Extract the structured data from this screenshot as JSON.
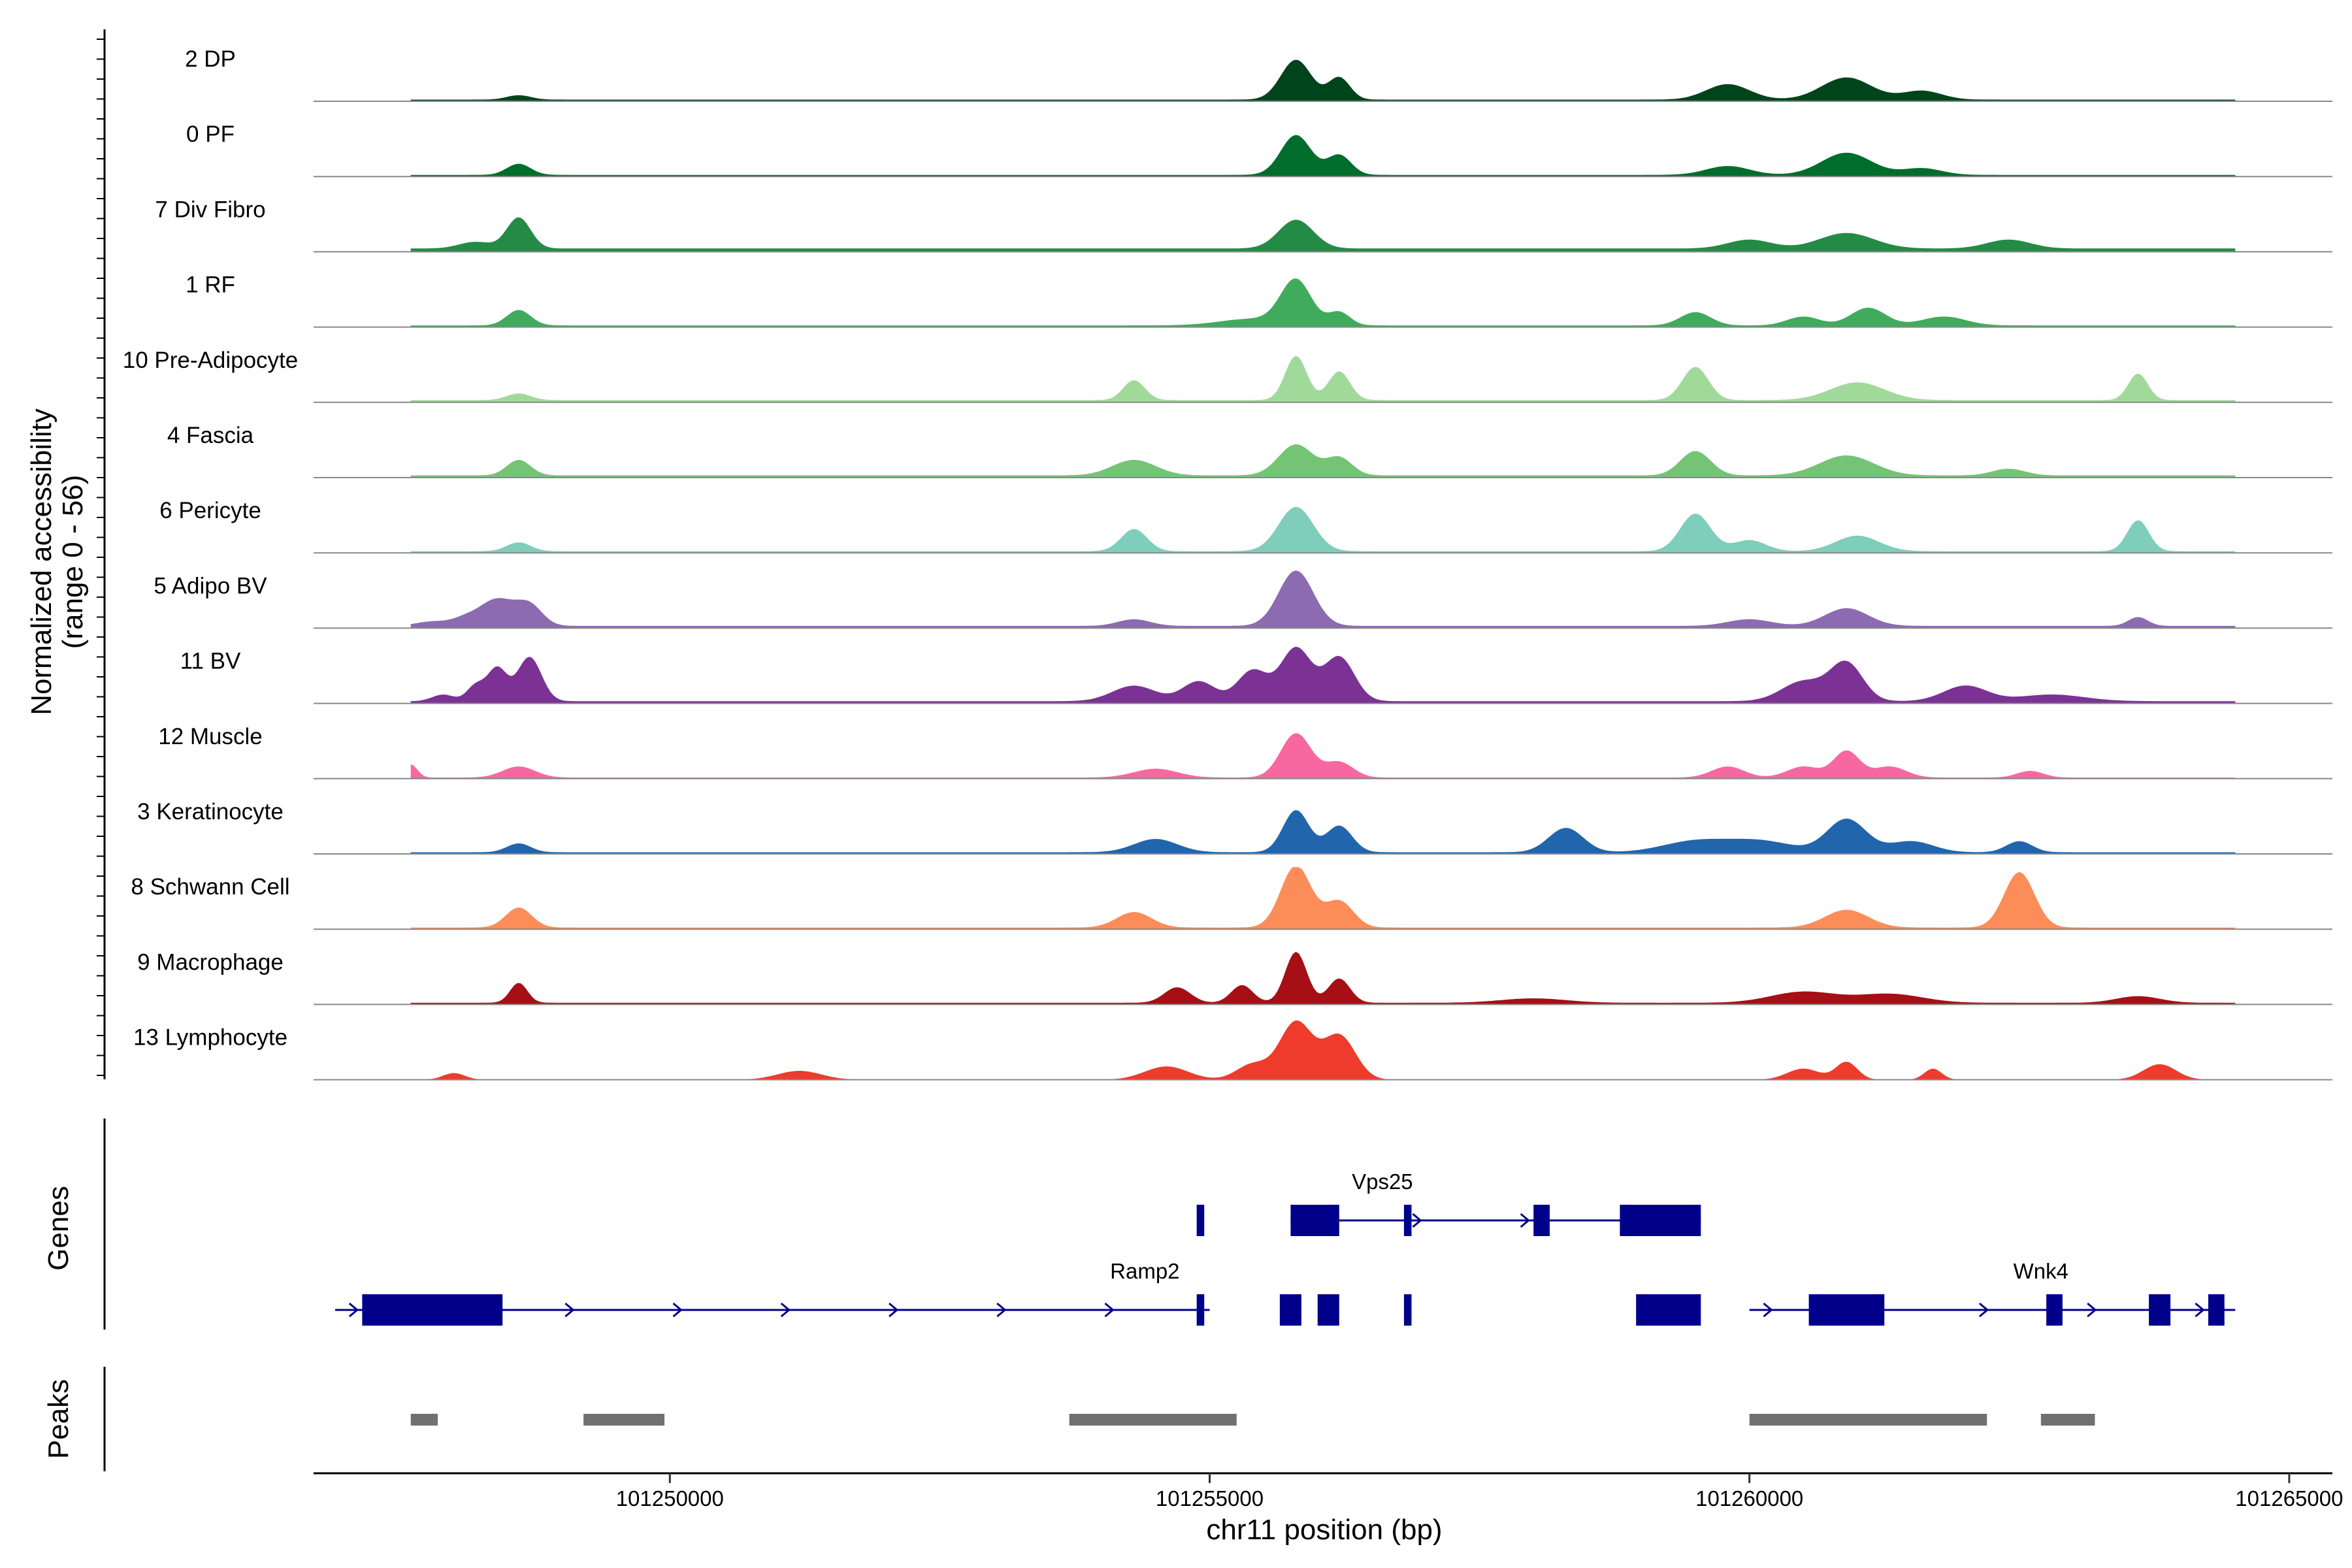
{
  "chart_data": {
    "type": "area",
    "title": "",
    "ylabel": "Normalized accessibility (range 0 - 56)",
    "ylabel_lines": [
      "Normalized accessibility",
      "(range 0 - 56)"
    ],
    "ylim": [
      0,
      56
    ],
    "xlabel": "chr11 position (bp)",
    "xlim": [
      101246700,
      101265400
    ],
    "xticks": [
      101250000,
      101255000,
      101260000,
      101265000
    ],
    "xtick_labels": [
      "101250000",
      "101255000",
      "101260000",
      "101265000"
    ],
    "panel_labels": {
      "genes": "Genes",
      "peaks": "Peaks"
    },
    "region": {
      "start": 101247600,
      "end": 101264500
    },
    "tracks": [
      {
        "name": "2 DP",
        "color": "#00441b",
        "baseline": 1.5,
        "peaks": [
          [
            101248600,
            4,
            110
          ],
          [
            101255800,
            36,
            140
          ],
          [
            101256200,
            20,
            100
          ],
          [
            101259800,
            14,
            200
          ],
          [
            101260900,
            20,
            230
          ],
          [
            101261600,
            8,
            180
          ]
        ]
      },
      {
        "name": "0 PF",
        "color": "#006d2c",
        "baseline": 1.5,
        "peaks": [
          [
            101248600,
            10,
            110
          ],
          [
            101255800,
            36,
            140
          ],
          [
            101256200,
            18,
            110
          ],
          [
            101259800,
            8,
            200
          ],
          [
            101260900,
            20,
            230
          ],
          [
            101261600,
            6,
            180
          ]
        ]
      },
      {
        "name": "7 Div Fibro",
        "color": "#238b45",
        "baseline": 3,
        "peaks": [
          [
            101248200,
            6,
            150
          ],
          [
            101248600,
            28,
            110
          ],
          [
            101255800,
            26,
            160
          ],
          [
            101260000,
            8,
            200
          ],
          [
            101260900,
            14,
            250
          ],
          [
            101262400,
            8,
            200
          ]
        ]
      },
      {
        "name": "1 RF",
        "color": "#41ab5d",
        "baseline": 1.5,
        "peaks": [
          [
            101248600,
            14,
            110
          ],
          [
            101255400,
            6,
            300
          ],
          [
            101255800,
            40,
            140
          ],
          [
            101256200,
            12,
            100
          ],
          [
            101259500,
            12,
            140
          ],
          [
            101260500,
            8,
            150
          ],
          [
            101261100,
            16,
            160
          ],
          [
            101261800,
            8,
            200
          ]
        ]
      },
      {
        "name": "10 Pre-Adipocyte",
        "color": "#a1d99b",
        "baseline": 2,
        "peaks": [
          [
            101248600,
            6,
            110
          ],
          [
            101254300,
            18,
            100
          ],
          [
            101255800,
            40,
            100
          ],
          [
            101256200,
            26,
            100
          ],
          [
            101259500,
            30,
            120
          ],
          [
            101261000,
            16,
            250
          ],
          [
            101263600,
            24,
            90
          ]
        ]
      },
      {
        "name": "4 Fascia",
        "color": "#74c476",
        "baseline": 2,
        "peaks": [
          [
            101248600,
            14,
            110
          ],
          [
            101254300,
            14,
            200
          ],
          [
            101255800,
            28,
            160
          ],
          [
            101256200,
            16,
            120
          ],
          [
            101259500,
            22,
            140
          ],
          [
            101260900,
            18,
            250
          ],
          [
            101262400,
            6,
            150
          ]
        ]
      },
      {
        "name": "6 Pericyte",
        "color": "#7fcdbb",
        "baseline": 1.5,
        "peaks": [
          [
            101248600,
            8,
            110
          ],
          [
            101254300,
            20,
            120
          ],
          [
            101255800,
            40,
            160
          ],
          [
            101259500,
            34,
            140
          ],
          [
            101260000,
            10,
            150
          ],
          [
            101261000,
            14,
            200
          ],
          [
            101263600,
            28,
            100
          ]
        ]
      },
      {
        "name": "5 Adipo BV",
        "color": "#8c6bb1",
        "baseline": 2,
        "peaks": [
          [
            101247800,
            4,
            150
          ],
          [
            101248100,
            6,
            120
          ],
          [
            101248400,
            24,
            160
          ],
          [
            101248700,
            18,
            120
          ],
          [
            101254300,
            6,
            150
          ],
          [
            101255800,
            50,
            160
          ],
          [
            101260000,
            6,
            200
          ],
          [
            101260900,
            16,
            200
          ],
          [
            101263600,
            8,
            90
          ]
        ]
      },
      {
        "name": "11 BV",
        "color": "#7b3294",
        "baseline": 2,
        "peaks": [
          [
            101247900,
            6,
            100
          ],
          [
            101248200,
            14,
            80
          ],
          [
            101248400,
            30,
            90
          ],
          [
            101248700,
            40,
            110
          ],
          [
            101254300,
            14,
            200
          ],
          [
            101254900,
            18,
            150
          ],
          [
            101255400,
            28,
            140
          ],
          [
            101255800,
            48,
            140
          ],
          [
            101256200,
            40,
            140
          ],
          [
            101260500,
            18,
            200
          ],
          [
            101260900,
            34,
            150
          ],
          [
            101262000,
            14,
            200
          ],
          [
            101262800,
            6,
            300
          ]
        ]
      },
      {
        "name": "12 Muscle",
        "color": "#f768a1",
        "baseline": 1,
        "peaks": [
          [
            101247600,
            12,
            60
          ],
          [
            101248600,
            10,
            150
          ],
          [
            101254500,
            8,
            200
          ],
          [
            101255800,
            40,
            140
          ],
          [
            101256200,
            14,
            130
          ],
          [
            101259800,
            10,
            150
          ],
          [
            101260500,
            10,
            150
          ],
          [
            101260900,
            24,
            120
          ],
          [
            101261300,
            10,
            150
          ],
          [
            101262600,
            6,
            120
          ]
        ]
      },
      {
        "name": "3 Keratinocyte",
        "color": "#2166ac",
        "baseline": 1.5,
        "peaks": [
          [
            101248600,
            8,
            110
          ],
          [
            101254500,
            12,
            200
          ],
          [
            101255800,
            38,
            120
          ],
          [
            101256200,
            24,
            120
          ],
          [
            101258300,
            22,
            160
          ],
          [
            101259500,
            10,
            300
          ],
          [
            101260100,
            10,
            300
          ],
          [
            101260900,
            30,
            180
          ],
          [
            101261500,
            10,
            200
          ],
          [
            101262500,
            10,
            120
          ]
        ]
      },
      {
        "name": "8 Schwann Cell",
        "color": "#fc8d59",
        "baseline": 1.5,
        "peaks": [
          [
            101248600,
            18,
            120
          ],
          [
            101254300,
            14,
            160
          ],
          [
            101255800,
            56,
            140
          ],
          [
            101256200,
            24,
            130
          ],
          [
            101260900,
            16,
            200
          ],
          [
            101262500,
            50,
            140
          ]
        ]
      },
      {
        "name": "9 Macrophage",
        "color": "#a50f15",
        "baseline": 1.5,
        "peaks": [
          [
            101248600,
            18,
            80
          ],
          [
            101254700,
            14,
            120
          ],
          [
            101255300,
            16,
            100
          ],
          [
            101255800,
            46,
            100
          ],
          [
            101256200,
            22,
            100
          ],
          [
            101258000,
            4,
            300
          ],
          [
            101260500,
            10,
            300
          ],
          [
            101261300,
            8,
            300
          ],
          [
            101263600,
            6,
            200
          ]
        ]
      },
      {
        "name": "13 Lymphocyte",
        "color": "#ef3b2c",
        "baseline": 0,
        "peaks": [
          [
            101248000,
            6,
            100
          ],
          [
            101251200,
            8,
            200
          ],
          [
            101254600,
            12,
            200
          ],
          [
            101255400,
            14,
            150
          ],
          [
            101255800,
            52,
            150
          ],
          [
            101256200,
            40,
            150
          ],
          [
            101260500,
            10,
            150
          ],
          [
            101260900,
            16,
            100
          ],
          [
            101261700,
            10,
            80
          ],
          [
            101263800,
            14,
            150
          ]
        ]
      }
    ],
    "genes": [
      {
        "name": "Vps25",
        "strand": "+",
        "row": 1,
        "start": 101255750,
        "end": 101259550,
        "exons": [
          [
            101255750,
            101256200
          ],
          [
            101254880,
            101254950
          ],
          [
            101256000,
            101256080
          ],
          [
            101256800,
            101256870
          ],
          [
            101258000,
            101258150
          ],
          [
            101258800,
            101259550
          ]
        ],
        "label_position": 101256600
      },
      {
        "name": "Ramp2",
        "strand": "+",
        "row": 2,
        "start": 101246900,
        "end": 101255000,
        "exons": [
          [
            101247150,
            101248450
          ],
          [
            101255650,
            101255850
          ],
          [
            101256050,
            101256200
          ],
          [
            101254880,
            101254950
          ],
          [
            101256000,
            101256080
          ],
          [
            101256800,
            101256870
          ],
          [
            101258950,
            101259550
          ]
        ],
        "label_position": 101254400
      },
      {
        "name": "Wnk4",
        "strand": "+",
        "row": 2,
        "start": 101260000,
        "end": 101264500,
        "exons": [
          [
            101260550,
            101261250
          ],
          [
            101262750,
            101262900
          ],
          [
            101263700,
            101263900
          ],
          [
            101264250,
            101264400
          ]
        ],
        "label_position": 101262700
      }
    ],
    "peak_regions": [
      [
        101247600,
        101247850
      ],
      [
        101249200,
        101249950
      ],
      [
        101253700,
        101255250
      ],
      [
        101260000,
        101262200
      ],
      [
        101262700,
        101263200
      ]
    ]
  }
}
